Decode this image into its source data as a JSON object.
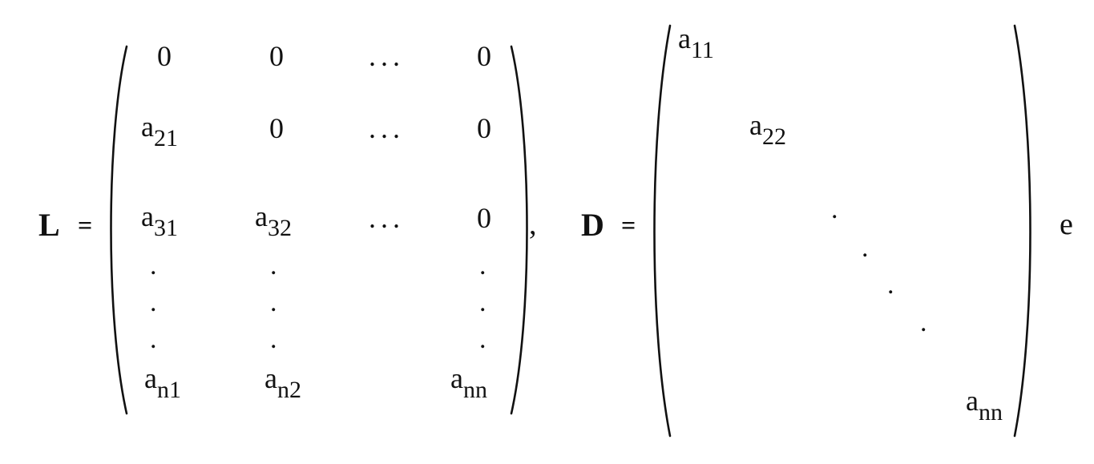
{
  "equation": {
    "L_name": "L",
    "equals": "=",
    "comma": ",",
    "D_name": "D",
    "trailing": "e"
  },
  "L_matrix": {
    "r0c0": "0",
    "r0c1": "0",
    "r0c2": "...",
    "r0c3": "0",
    "r1c0_base": "a",
    "r1c0_sub": "21",
    "r1c1": "0",
    "r1c2": "...",
    "r1c3": "0",
    "r2c0_base": "a",
    "r2c0_sub": "31",
    "r2c1_base": "a",
    "r2c1_sub": "32",
    "r2c2": "...",
    "r2c3": "0",
    "vdot": ".",
    "r6c0_base": "a",
    "r6c0_sub": "n1",
    "r6c1_base": "a",
    "r6c1_sub": "n2",
    "r6c3_base": "a",
    "r6c3_sub": "nn"
  },
  "D_matrix": {
    "d11_base": "a",
    "d11_sub": "11",
    "d22_base": "a",
    "d22_sub": "22",
    "ddot": ".",
    "dnn_base": "a",
    "dnn_sub": "nn"
  }
}
